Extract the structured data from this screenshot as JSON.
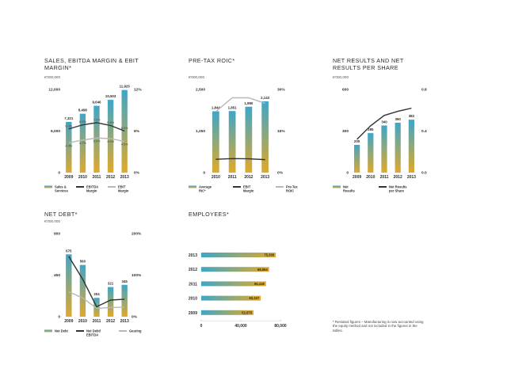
{
  "colors": {
    "bar_top": "#3fa6c8",
    "bar_bottom": "#e0a92a",
    "line_dark": "#333333",
    "line_light": "#b8b8b8",
    "text": "#2c2c2c"
  },
  "panels": {
    "sales": {
      "title": "SALES, EBITDA MARGIN & EBIT MARGIN*",
      "unit": "€'000,000"
    },
    "roic": {
      "title": "PRE-TAX ROIC*",
      "unit": "€'000,000"
    },
    "results": {
      "title": "NET RESULTS AND NET RESULTS PER SHARE",
      "unit": "€'000,000"
    },
    "debt": {
      "title": "NET DEBT*",
      "unit": "€'000,000"
    },
    "employees": {
      "title": "EMPLOYEES*",
      "unit": ""
    }
  },
  "footnote": "* Restated figures – Manufacturing is now accounted using the equity method and not included in the figures in the tables.",
  "chart_data": [
    {
      "id": "sales",
      "type": "bar",
      "categories": [
        "2009",
        "2010",
        "2011",
        "2012",
        "2013"
      ],
      "ylim": [
        0,
        12000
      ],
      "y_ticks": [
        "0",
        "6,000",
        "12,000"
      ],
      "y2lim": [
        0,
        12
      ],
      "y2_ticks": [
        "0%",
        "6%",
        "12%"
      ],
      "series": [
        {
          "name": "Sales & Services",
          "kind": "bar",
          "values": [
            7321,
            8498,
            9646,
            10503,
            11925
          ],
          "labels": [
            "7,321",
            "8,498",
            "9,646",
            "10,503",
            "11,925"
          ]
        },
        {
          "name": "EBITDA Margin",
          "kind": "line",
          "axis": "right",
          "color": "dark",
          "values": [
            6.3,
            6.9,
            7.2,
            6.8,
            6.0
          ],
          "labels": [
            "6.3%",
            "6.9%",
            "7.2%",
            "6.8%",
            "6.0%"
          ]
        },
        {
          "name": "EBIT Margin",
          "kind": "line",
          "axis": "right",
          "color": "light",
          "values": [
            4.3,
            4.7,
            5.0,
            4.9,
            4.5
          ],
          "labels": [
            "4.3%",
            "4.7%",
            "5.0%",
            "4.9%",
            "4.5%"
          ]
        }
      ],
      "legend": [
        {
          "name": "Sales & Services",
          "sym": "bar"
        },
        {
          "name": "EBITDA Margin",
          "sym": "dark"
        },
        {
          "name": "EBIT Margin",
          "sym": "light"
        }
      ]
    },
    {
      "id": "roic",
      "type": "bar",
      "categories": [
        "2010",
        "2011",
        "2012",
        "2013"
      ],
      "ylim": [
        0,
        2500
      ],
      "y_ticks": [
        "0",
        "1,250",
        "2,500"
      ],
      "y2lim": [
        0,
        30
      ],
      "y2_ticks": [
        "0%",
        "15%",
        "30%"
      ],
      "series": [
        {
          "name": "Average RIC*",
          "kind": "bar",
          "values": [
            1844,
            1851,
            1980,
            2143
          ],
          "labels": [
            "1,844",
            "1,851",
            "1,980",
            "2,143"
          ]
        },
        {
          "name": "EBIT Margin",
          "kind": "line",
          "axis": "left",
          "color": "dark",
          "values": [
            400,
            420,
            415,
            390
          ],
          "labels": []
        },
        {
          "name": "Pre-Tax ROIC",
          "kind": "line",
          "axis": "right",
          "color": "light",
          "values": [
            22,
            27,
            27,
            25
          ],
          "labels": []
        }
      ],
      "legend": [
        {
          "name": "Average RIC*",
          "sym": "bar"
        },
        {
          "name": "EBIT Margin",
          "sym": "dark"
        },
        {
          "name": "Pre-Tax ROIC",
          "sym": "light"
        }
      ]
    },
    {
      "id": "results",
      "type": "bar",
      "categories": [
        "2009",
        "2010",
        "2011",
        "2012",
        "2013"
      ],
      "ylim": [
        0,
        600
      ],
      "y_ticks": [
        "0",
        "300",
        "600"
      ],
      "y2lim": [
        0,
        0.8
      ],
      "y2_ticks": [
        "0.0",
        "0.4",
        "0.8"
      ],
      "series": [
        {
          "name": "Net Results",
          "kind": "bar",
          "values": [
            200,
            285,
            340,
            360,
            382
          ],
          "labels": [
            "200",
            "285",
            "340",
            "360",
            "382"
          ]
        },
        {
          "name": "Net Results per Share",
          "kind": "line",
          "axis": "right",
          "color": "dark",
          "values": [
            0.32,
            0.45,
            0.55,
            0.59,
            0.62
          ],
          "labels": []
        }
      ],
      "legend": [
        {
          "name": "Net Results",
          "sym": "bar"
        },
        {
          "name": "Net Results per Share",
          "sym": "dark"
        }
      ]
    },
    {
      "id": "debt",
      "type": "bar",
      "categories": [
        "2009",
        "2010",
        "2011",
        "2012",
        "2013"
      ],
      "ylim": [
        0,
        900
      ],
      "y_ticks": [
        "0",
        "450",
        "900"
      ],
      "y2lim": [
        0,
        200
      ],
      "y2_ticks": [
        "0%",
        "100%",
        "200%"
      ],
      "series": [
        {
          "name": "Net Debt",
          "kind": "bar",
          "values": [
            675,
            560,
            204,
            321,
            345
          ],
          "labels": [
            "675",
            "560",
            "204",
            "321",
            "345"
          ]
        },
        {
          "name": "Net Debt/ EBITDA",
          "kind": "line",
          "axis": "right",
          "color": "dark",
          "values": [
            145,
            90,
            24,
            40,
            42
          ],
          "labels": []
        },
        {
          "name": "Gearing",
          "kind": "line",
          "axis": "right",
          "color": "light",
          "values": [
            60,
            45,
            20,
            22,
            23
          ],
          "labels": []
        }
      ],
      "legend": [
        {
          "name": "Net Debt",
          "sym": "bar"
        },
        {
          "name": "Net Debt/ EBITDA",
          "sym": "dark"
        },
        {
          "name": "Gearing",
          "sym": "light"
        }
      ]
    },
    {
      "id": "employees",
      "type": "bar",
      "orientation": "horizontal",
      "categories": [
        "2013",
        "2012",
        "2011",
        "2010",
        "2009"
      ],
      "xlim": [
        0,
        80000
      ],
      "x_ticks": [
        "0",
        "40,000",
        "80,000"
      ],
      "series": [
        {
          "name": "Employees",
          "kind": "bar",
          "values": [
            75300,
            68554,
            65418,
            60157,
            52875
          ],
          "labels": [
            "75,300",
            "68,554",
            "65,418",
            "60,157",
            "52,875"
          ]
        }
      ]
    }
  ]
}
